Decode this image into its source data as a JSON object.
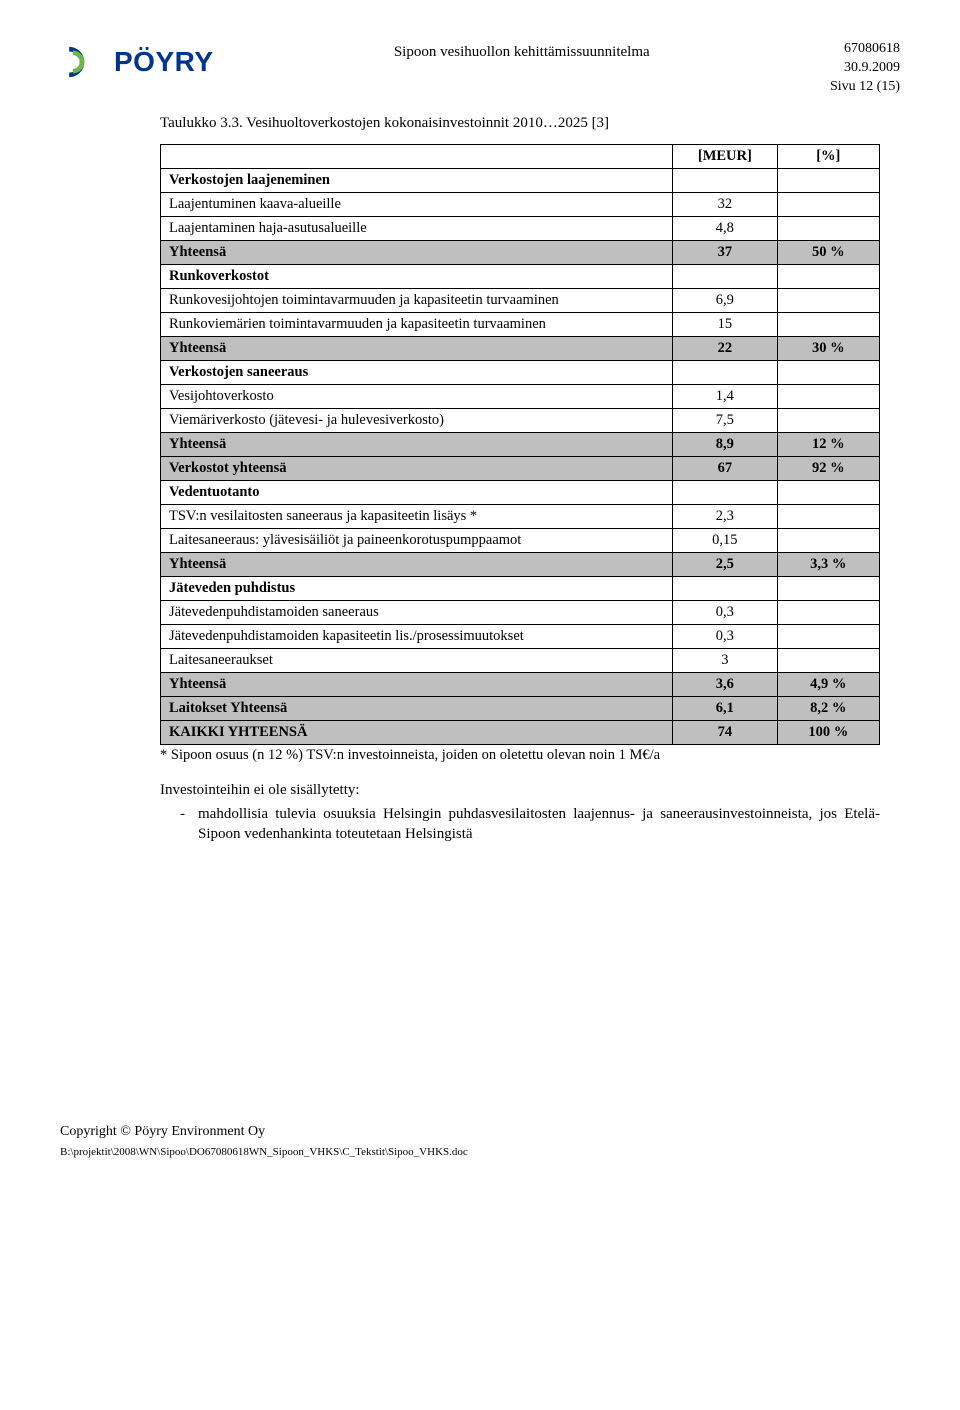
{
  "header": {
    "logo_text": "PÖYRY",
    "center": "Sipoon vesihuollon kehittämissuunnitelma",
    "right_line1": "67080618",
    "right_line2": "30.9.2009",
    "right_line3": "Sivu 12 (15)"
  },
  "table_caption": "Taulukko 3.3. Vesihuoltoverkostojen kokonaisinvestoinnit 2010…2025 [3]",
  "columns": {
    "val": "[MEUR]",
    "pct": "[%]"
  },
  "rows": [
    {
      "type": "header",
      "label": "Verkostojen laajeneminen",
      "val": "",
      "pct": ""
    },
    {
      "type": "data",
      "label": "Laajentuminen kaava-alueille",
      "val": "32",
      "pct": ""
    },
    {
      "type": "data",
      "label": "Laajentaminen haja-asutusalueille",
      "val": "4,8",
      "pct": ""
    },
    {
      "type": "total",
      "label": "Yhteensä",
      "val": "37",
      "pct": "50 %"
    },
    {
      "type": "header",
      "label": "Runkoverkostot",
      "val": "",
      "pct": ""
    },
    {
      "type": "data",
      "label": "Runkovesijohtojen toimintavarmuuden ja kapasiteetin turvaaminen",
      "val": "6,9",
      "pct": ""
    },
    {
      "type": "data",
      "label": "Runkoviemärien toimintavarmuuden ja kapasiteetin turvaaminen",
      "val": "15",
      "pct": ""
    },
    {
      "type": "total",
      "label": "Yhteensä",
      "val": "22",
      "pct": "30 %"
    },
    {
      "type": "header",
      "label": "Verkostojen saneeraus",
      "val": "",
      "pct": ""
    },
    {
      "type": "data",
      "label": "Vesijohtoverkosto",
      "val": "1,4",
      "pct": ""
    },
    {
      "type": "data",
      "label": "Viemäriverkosto (jätevesi- ja hulevesiverkosto)",
      "val": "7,5",
      "pct": ""
    },
    {
      "type": "total",
      "label": "Yhteensä",
      "val": "8,9",
      "pct": "12 %"
    },
    {
      "type": "total",
      "label": "Verkostot yhteensä",
      "val": "67",
      "pct": "92 %"
    },
    {
      "type": "header",
      "label": "Vedentuotanto",
      "val": "",
      "pct": ""
    },
    {
      "type": "data",
      "label": "TSV:n vesilaitosten saneeraus  ja kapasiteetin lisäys *",
      "val": "2,3",
      "pct": ""
    },
    {
      "type": "data",
      "label": "Laitesaneeraus: ylävesisäiliöt ja paineenkorotuspumppaamot",
      "val": "0,15",
      "pct": ""
    },
    {
      "type": "total",
      "label": "Yhteensä",
      "val": "2,5",
      "pct": "3,3 %"
    },
    {
      "type": "header",
      "label": "Jäteveden puhdistus",
      "val": "",
      "pct": ""
    },
    {
      "type": "data",
      "label": "Jätevedenpuhdistamoiden saneeraus",
      "val": "0,3",
      "pct": ""
    },
    {
      "type": "data",
      "label": "Jätevedenpuhdistamoiden kapasiteetin lis./prosessimuutokset",
      "val": "0,3",
      "pct": ""
    },
    {
      "type": "data",
      "label": "Laitesaneeraukset",
      "val": "3",
      "pct": ""
    },
    {
      "type": "total",
      "label": "Yhteensä",
      "val": "3,6",
      "pct": "4,9 %"
    },
    {
      "type": "total",
      "label": "Laitokset Yhteensä",
      "val": "6,1",
      "pct": "8,2 %"
    },
    {
      "type": "grand",
      "label": "KAIKKI YHTEENSÄ",
      "val": "74",
      "pct": "100 %"
    }
  ],
  "note": "* Sipoon osuus (n 12 %) TSV:n investoinneista, joiden on oletettu olevan noin 1 M€/a",
  "body": {
    "intro": "Investointeihin ei ole sisällytetty:",
    "bullet": "mahdollisia tulevia osuuksia Helsingin puhdasvesilaitosten laajennus- ja saneerausinvestoinneista, jos Etelä-Sipoon vedenhankinta toteutetaan Helsingistä"
  },
  "footer": {
    "copyright": "Copyright © Pöyry Environment Oy",
    "path": "B:\\projektit\\2008\\WN\\Sipoo\\DO67080618WN_Sipoon_VHKS\\C_Tekstit\\Sipoo_VHKS.doc"
  },
  "style": {
    "total_row_bg": "#bfbfbf",
    "border_color": "#000000",
    "logo_color": "#00338d",
    "logo_accent": "#6bb745"
  }
}
